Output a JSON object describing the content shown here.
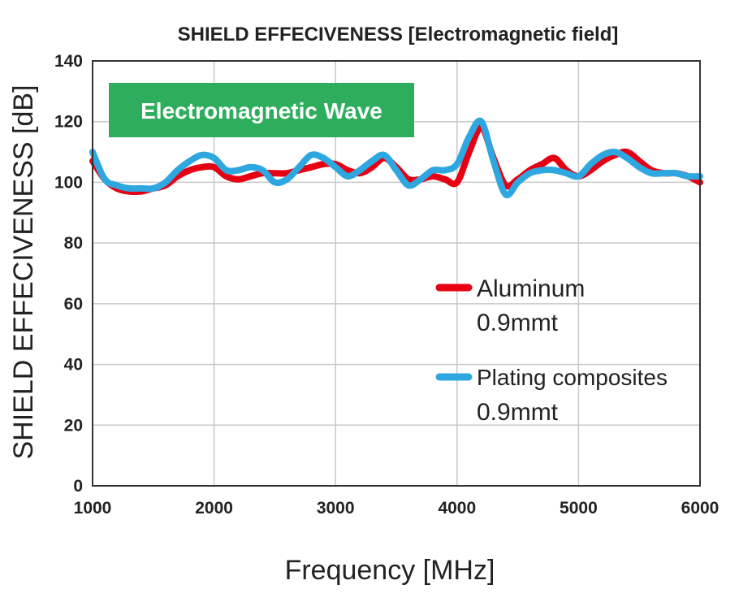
{
  "chart_data": {
    "type": "line",
    "title": "SHIELD EFFECIVENESS [Electromagnetic field]",
    "xlabel": "Frequency [MHz]",
    "ylabel": "SHIELD EFFECIVENESS [dB]",
    "xlim": [
      1000,
      6000
    ],
    "ylim": [
      0,
      140
    ],
    "xticks": [
      1000,
      2000,
      3000,
      4000,
      5000,
      6000
    ],
    "yticks": [
      0,
      20,
      40,
      60,
      80,
      100,
      120,
      140
    ],
    "grid": true,
    "legend_position": "right",
    "annotation": "Electromagnetic Wave",
    "series": [
      {
        "name": "Aluminum",
        "name_line2": "0.9mmt",
        "color": "#e60012",
        "x": [
          1000,
          1100,
          1200,
          1300,
          1400,
          1500,
          1600,
          1700,
          1800,
          1900,
          2000,
          2100,
          2200,
          2300,
          2400,
          2500,
          2600,
          2700,
          2800,
          2900,
          3000,
          3100,
          3200,
          3300,
          3400,
          3500,
          3600,
          3700,
          3800,
          3900,
          4000,
          4100,
          4200,
          4300,
          4400,
          4500,
          4600,
          4700,
          4800,
          4900,
          5000,
          5100,
          5200,
          5300,
          5400,
          5500,
          5600,
          5700,
          5800,
          5900,
          6000
        ],
        "values": [
          107,
          101,
          98,
          97,
          97,
          98,
          99,
          102,
          104,
          105,
          105,
          102,
          101,
          102,
          103,
          103,
          103,
          104,
          105,
          106,
          106,
          104,
          103,
          105,
          108,
          105,
          101,
          101,
          102,
          101,
          100,
          110,
          118,
          108,
          99,
          101,
          104,
          106,
          108,
          104,
          102,
          104,
          107,
          109,
          110,
          107,
          104,
          103,
          103,
          102,
          100
        ]
      },
      {
        "name": "Plating composites",
        "name_line2": "0.9mmt",
        "color": "#2ea7e0",
        "x": [
          1000,
          1100,
          1200,
          1300,
          1400,
          1500,
          1600,
          1700,
          1800,
          1900,
          2000,
          2100,
          2200,
          2300,
          2400,
          2500,
          2600,
          2700,
          2800,
          2900,
          3000,
          3100,
          3200,
          3300,
          3400,
          3500,
          3600,
          3700,
          3800,
          3900,
          4000,
          4100,
          4200,
          4300,
          4400,
          4500,
          4600,
          4700,
          4800,
          4900,
          5000,
          5100,
          5200,
          5300,
          5400,
          5500,
          5600,
          5700,
          5800,
          5900,
          6000
        ],
        "values": [
          110,
          101,
          99,
          98,
          98,
          98,
          100,
          104,
          107,
          109,
          108,
          104,
          104,
          105,
          104,
          100,
          101,
          105,
          109,
          108,
          105,
          102,
          104,
          107,
          109,
          104,
          99,
          101,
          104,
          104,
          106,
          115,
          120,
          107,
          96,
          100,
          103,
          104,
          104,
          103,
          102,
          106,
          109,
          110,
          108,
          105,
          103,
          103,
          103,
          102,
          102
        ]
      }
    ]
  }
}
